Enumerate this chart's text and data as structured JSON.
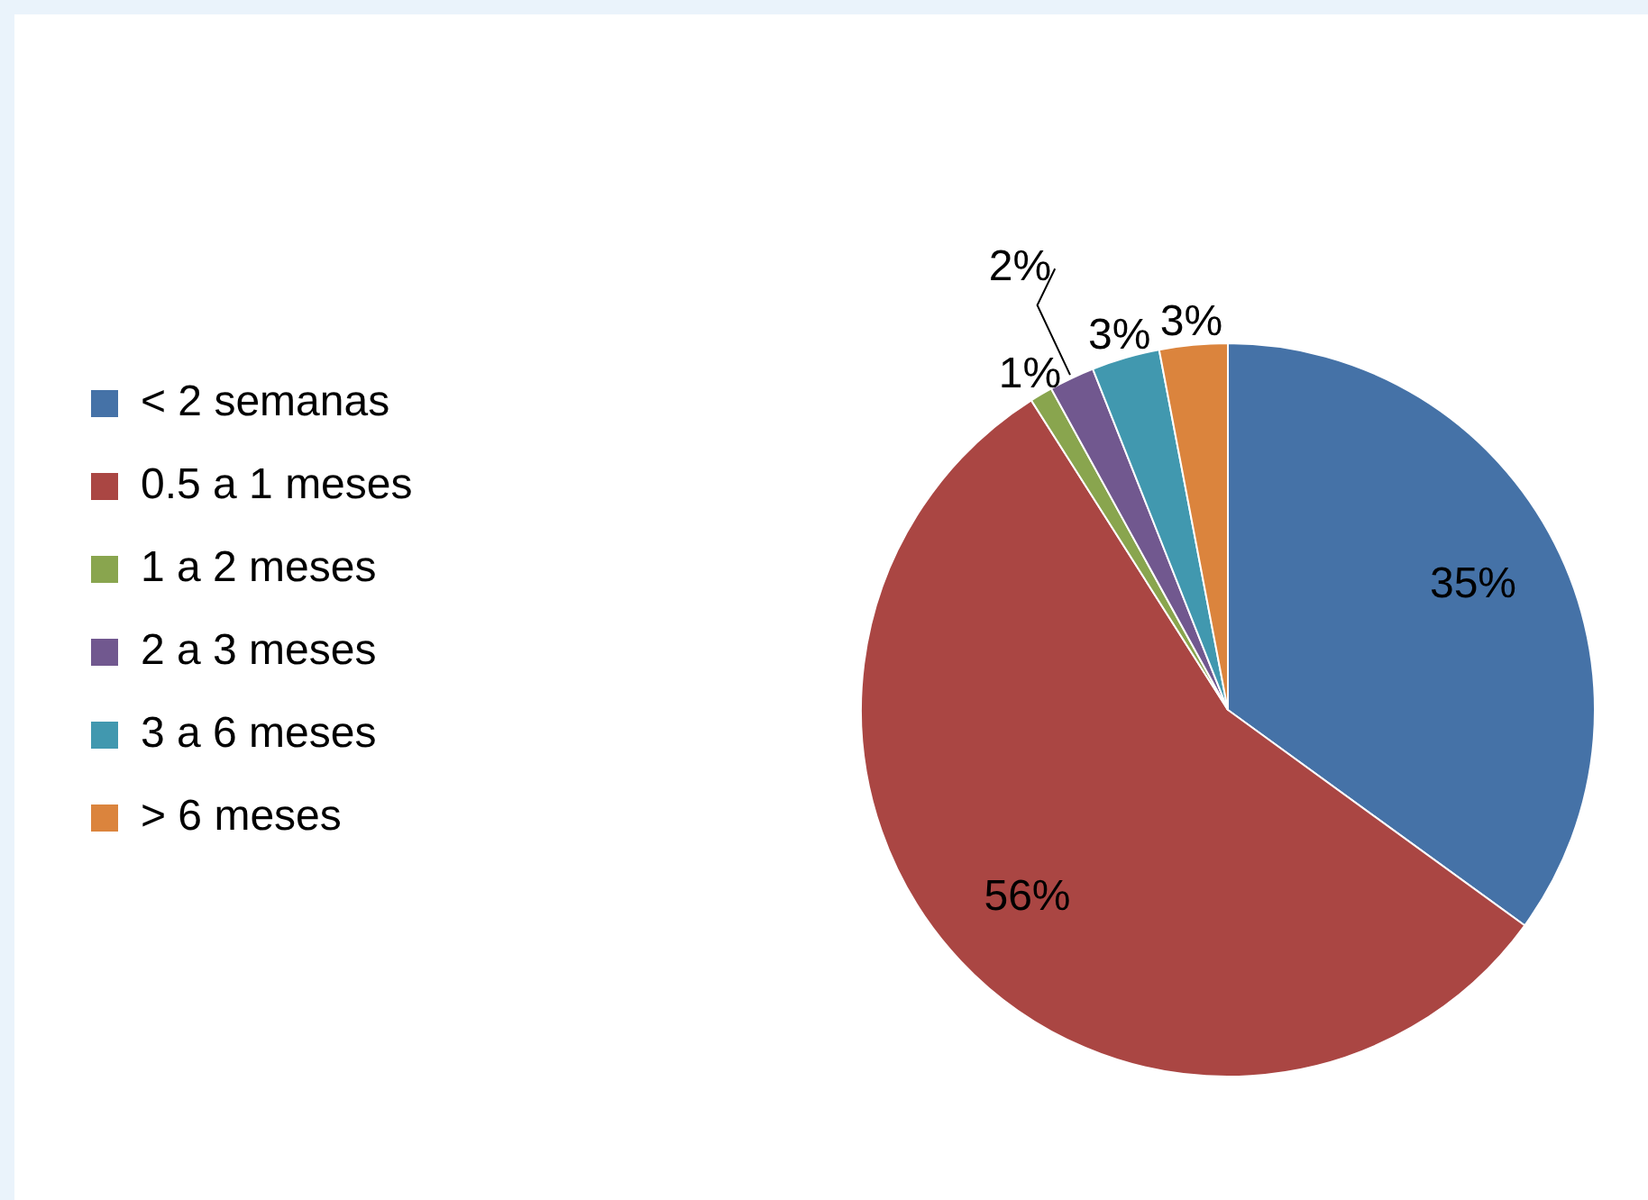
{
  "chart_data": {
    "type": "pie",
    "categories": [
      "< 2 semanas",
      "0.5 a 1 meses",
      "1 a 2 meses",
      "2 a 3 meses",
      "3 a 6 meses",
      "> 6 meses"
    ],
    "values": [
      35,
      56,
      1,
      2,
      3,
      3
    ],
    "colors": [
      "#4572a7",
      "#aa4643",
      "#89a54e",
      "#71588f",
      "#4198af",
      "#db843d"
    ],
    "value_labels": [
      "35%",
      "56%",
      "1%",
      "2%",
      "3%",
      "3%"
    ],
    "legend": "left"
  }
}
